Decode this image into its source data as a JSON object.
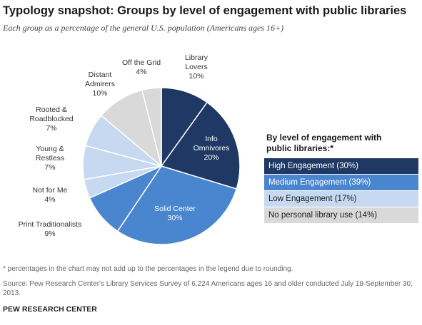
{
  "title": "Typology snapshot: Groups by level of engagement with public libraries",
  "subtitle": "Each group as a percentage of the general U.S. population (Americans ages 16+)",
  "chart_data": {
    "type": "pie",
    "start_angle_deg": 0,
    "direction": "clockwise",
    "slices": [
      {
        "label": "Library Lovers",
        "value": 10,
        "value_label": "10%",
        "color": "#1f3864",
        "label_inside": false
      },
      {
        "label": "Info Omnivores",
        "value": 20,
        "value_label": "20%",
        "color": "#1f3864",
        "label_inside": true
      },
      {
        "label": "Solid Center",
        "value": 30,
        "value_label": "30%",
        "color": "#4a86cf",
        "label_inside": true
      },
      {
        "label": "Print Traditionalists",
        "value": 9,
        "value_label": "9%",
        "color": "#4a86cf",
        "label_inside": false
      },
      {
        "label": "Not for Me",
        "value": 4,
        "value_label": "4%",
        "color": "#c6d9f0",
        "label_inside": false
      },
      {
        "label": "Young & Restless",
        "value": 7,
        "value_label": "7%",
        "color": "#c6d9f0",
        "label_inside": false
      },
      {
        "label": "Rooted & Roadblocked",
        "value": 7,
        "value_label": "7%",
        "color": "#c6d9f0",
        "label_inside": false
      },
      {
        "label": "Distant Admirers",
        "value": 10,
        "value_label": "10%",
        "color": "#d9d9d9",
        "label_inside": false
      },
      {
        "label": "Off the Grid",
        "value": 4,
        "value_label": "4%",
        "color": "#d9d9d9",
        "label_inside": false
      }
    ],
    "legend": {
      "title": "By level of engagement with public libraries:*",
      "placement": "right",
      "items": [
        {
          "label": "High Engagement (30%)",
          "color": "#1f3864",
          "text_color": "#ffffff"
        },
        {
          "label": "Medium Engagement (39%)",
          "color": "#4a86cf",
          "text_color": "#ffffff"
        },
        {
          "label": "Low Engagement (17%)",
          "color": "#c6d9f0",
          "text_color": "#222222"
        },
        {
          "label": "No personal library use (14%)",
          "color": "#d9d9d9",
          "text_color": "#222222"
        }
      ]
    }
  },
  "footnote": "* percentages in the chart may not add up to the percentages in the legend due to rounding.",
  "source": "Source: Pew Research Center's Library Services Survey of 6,224 Americans ages 16 and older conducted July 18-September 30, 2013.",
  "brand": "PEW RESEARCH CENTER"
}
